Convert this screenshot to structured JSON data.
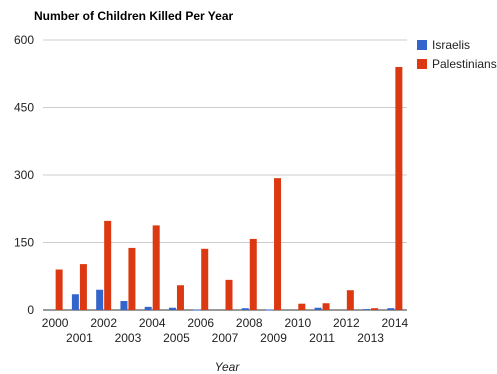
{
  "chart_data": {
    "type": "bar",
    "title": "Number of Children Killed Per Year",
    "xlabel": "Year",
    "ylabel": "",
    "ylim": [
      0,
      600
    ],
    "yticks": [
      0,
      150,
      300,
      450,
      600
    ],
    "grid": true,
    "legend_position": "right",
    "categories": [
      "2000",
      "2001",
      "2002",
      "2003",
      "2004",
      "2005",
      "2006",
      "2007",
      "2008",
      "2009",
      "2010",
      "2011",
      "2012",
      "2013",
      "2014"
    ],
    "series": [
      {
        "name": "Israelis",
        "color": "#3366cc",
        "values": [
          0,
          35,
          45,
          20,
          7,
          5,
          1,
          0,
          4,
          1,
          0,
          5,
          0,
          2,
          4
        ]
      },
      {
        "name": "Palestinians",
        "color": "#dc3912",
        "values": [
          90,
          102,
          198,
          138,
          188,
          55,
          136,
          67,
          158,
          293,
          14,
          15,
          44,
          4,
          540
        ]
      }
    ]
  }
}
